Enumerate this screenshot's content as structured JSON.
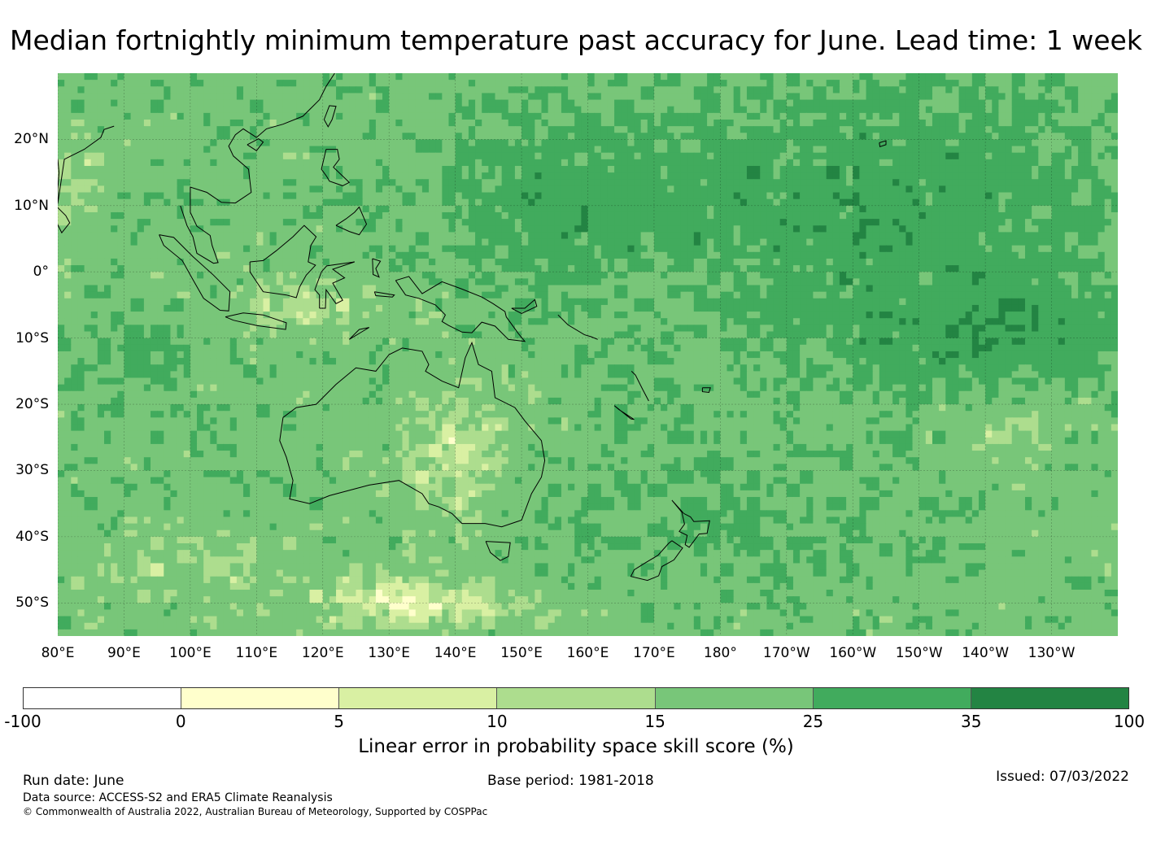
{
  "title": "Median fortnightly minimum temperature past accuracy for June. Lead time: 1 week",
  "map": {
    "extent": {
      "lon_min": 80,
      "lon_max": 240,
      "lat_min": -55,
      "lat_max": 30
    },
    "lat_labels": [
      {
        "text": "20°N",
        "lat": 20
      },
      {
        "text": "10°N",
        "lat": 10
      },
      {
        "text": "0°",
        "lat": 0
      },
      {
        "text": "10°S",
        "lat": -10
      },
      {
        "text": "20°S",
        "lat": -20
      },
      {
        "text": "30°S",
        "lat": -30
      },
      {
        "text": "40°S",
        "lat": -40
      },
      {
        "text": "50°S",
        "lat": -50
      }
    ],
    "lon_labels": [
      {
        "text": "80°E",
        "lon": 80
      },
      {
        "text": "90°E",
        "lon": 90
      },
      {
        "text": "100°E",
        "lon": 100
      },
      {
        "text": "110°E",
        "lon": 110
      },
      {
        "text": "120°E",
        "lon": 120
      },
      {
        "text": "130°E",
        "lon": 130
      },
      {
        "text": "140°E",
        "lon": 140
      },
      {
        "text": "150°E",
        "lon": 150
      },
      {
        "text": "160°E",
        "lon": 160
      },
      {
        "text": "170°E",
        "lon": 170
      },
      {
        "text": "180°",
        "lon": 180
      },
      {
        "text": "170°W",
        "lon": 190
      },
      {
        "text": "160°W",
        "lon": 200
      },
      {
        "text": "150°W",
        "lon": 210
      },
      {
        "text": "140°W",
        "lon": 220
      },
      {
        "text": "130°W",
        "lon": 230
      }
    ]
  },
  "colorbar": {
    "ticks": [
      "-100",
      "0",
      "5",
      "10",
      "15",
      "25",
      "35",
      "100"
    ],
    "colors": [
      "#ffffff",
      "#ffffcc",
      "#d9f0a3",
      "#addd8e",
      "#78c679",
      "#41ab5d",
      "#238443"
    ],
    "label": "Linear error in probability space skill score (%)"
  },
  "footer": {
    "run_date": "Run date: June",
    "base_period": "Base period: 1981-2018",
    "issued": "Issued: 07/03/2022",
    "data_source": "Data source: ACCESS-S2 and ERA5 Climate Reanalysis",
    "copyright": "© Commonwealth of Australia 2022, Australian Bureau of Meteorology, Supported by COSPPac"
  }
}
